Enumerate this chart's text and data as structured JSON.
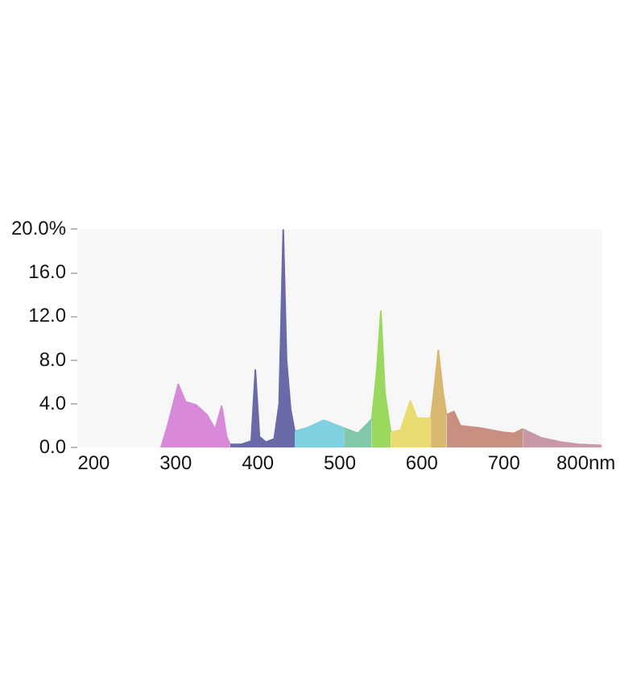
{
  "chart_data": {
    "type": "area",
    "series": [
      {
        "color": "#d88ad8",
        "x": [
          282,
          290,
          303,
          312,
          325,
          338,
          348,
          356,
          362,
          366
        ],
        "values": [
          0,
          2,
          5.8,
          4.2,
          3.9,
          3.0,
          1.7,
          3.8,
          1.0,
          0.3
        ]
      },
      {
        "color": "#6a6aa8",
        "x": [
          366,
          380,
          392,
          397,
          402,
          410,
          420,
          426,
          431,
          435,
          440,
          445
        ],
        "values": [
          0.3,
          0.3,
          0.6,
          7.1,
          1.0,
          0.5,
          0.8,
          4.0,
          20,
          8,
          3.5,
          1.5
        ]
      },
      {
        "color": "#7fd0e0",
        "x": [
          445,
          460,
          480,
          488,
          505
        ],
        "values": [
          1.5,
          1.8,
          2.5,
          2.3,
          1.8
        ]
      },
      {
        "color": "#80c8a8",
        "x": [
          505,
          522,
          539
        ],
        "values": [
          1.8,
          1.3,
          2.6
        ]
      },
      {
        "color": "#9ad860",
        "x": [
          539,
          545,
          550,
          555,
          562
        ],
        "values": [
          2.6,
          7,
          12.5,
          5,
          1.4
        ]
      },
      {
        "color": "#e8dc70",
        "x": [
          562,
          574,
          586,
          594,
          611
        ],
        "values": [
          1.4,
          1.6,
          4.3,
          2.7,
          2.7
        ]
      },
      {
        "color": "#d8b870",
        "x": [
          611,
          616,
          620,
          626,
          630
        ],
        "values": [
          2.7,
          6,
          8.9,
          5,
          3.0
        ]
      },
      {
        "color": "#c89080",
        "x": [
          630,
          639,
          647,
          670,
          699,
          712,
          723
        ],
        "values": [
          3.0,
          3.3,
          2.0,
          1.8,
          1.4,
          1.3,
          1.7
        ]
      },
      {
        "color": "#c898a8",
        "x": [
          723,
          745,
          770,
          791,
          819
        ],
        "values": [
          1.7,
          0.9,
          0.5,
          0.3,
          0.2
        ]
      }
    ],
    "xlim": [
      180,
      820
    ],
    "xticks": [
      200,
      300,
      400,
      500,
      600,
      700,
      {
        "value": 800,
        "label": "800nm"
      }
    ],
    "ylim": [
      0,
      20
    ],
    "yticks": [
      {
        "value": 0,
        "label": "0.0"
      },
      {
        "value": 4,
        "label": "4.0"
      },
      {
        "value": 8,
        "label": "8.0"
      },
      {
        "value": 12,
        "label": "12.0"
      },
      {
        "value": 16,
        "label": "16.0"
      },
      {
        "value": 20,
        "label": "20.0%"
      }
    ],
    "grid": false,
    "legend": false
  }
}
